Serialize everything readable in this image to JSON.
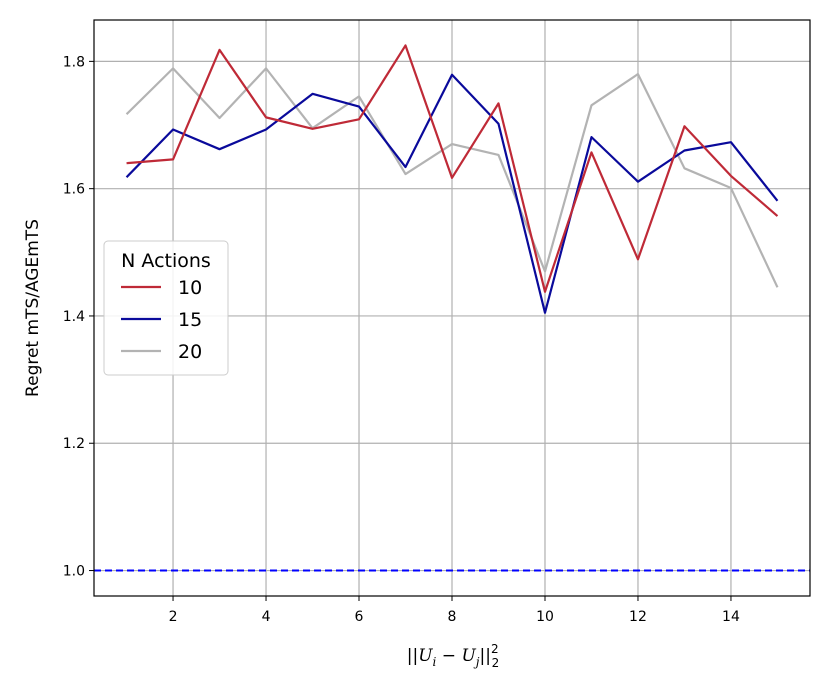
{
  "chart_data": {
    "type": "line",
    "title": "",
    "xlabel": "||U_i - U_j||_2^2",
    "ylabel": "Regret mTS/AGEmTS",
    "xlim": [
      0.3,
      15.7
    ],
    "ylim": [
      0.96,
      1.865
    ],
    "xticks": [
      2,
      4,
      6,
      8,
      10,
      12,
      14
    ],
    "yticks": [
      1.0,
      1.2,
      1.4,
      1.6,
      1.8
    ],
    "xtick_labels": [
      "2",
      "4",
      "6",
      "8",
      "10",
      "12",
      "14"
    ],
    "ytick_labels": [
      "1.0",
      "1.2",
      "1.4",
      "1.6",
      "1.8"
    ],
    "grid": true,
    "legend": {
      "title": "N Actions",
      "position": "center-left"
    },
    "x": [
      1,
      2,
      3,
      4,
      5,
      6,
      7,
      8,
      9,
      10,
      11,
      12,
      13,
      14,
      15
    ],
    "series": [
      {
        "name": "10",
        "color": "#bf2a37",
        "values": [
          1.64,
          1.646,
          1.818,
          1.712,
          1.694,
          1.709,
          1.825,
          1.617,
          1.734,
          1.438,
          1.657,
          1.489,
          1.698,
          1.62,
          1.557
        ]
      },
      {
        "name": "15",
        "color": "#0a0a9b",
        "values": [
          1.618,
          1.693,
          1.662,
          1.693,
          1.749,
          1.729,
          1.634,
          1.779,
          1.702,
          1.405,
          1.681,
          1.611,
          1.66,
          1.673,
          1.581
        ]
      },
      {
        "name": "20",
        "color": "#b3b3b3",
        "values": [
          1.717,
          1.789,
          1.711,
          1.789,
          1.695,
          1.745,
          1.623,
          1.67,
          1.653,
          1.47,
          1.731,
          1.78,
          1.632,
          1.601,
          1.445
        ]
      }
    ],
    "reference_line": {
      "y": 1.0,
      "color": "#0000ff",
      "style": "dashed"
    }
  }
}
